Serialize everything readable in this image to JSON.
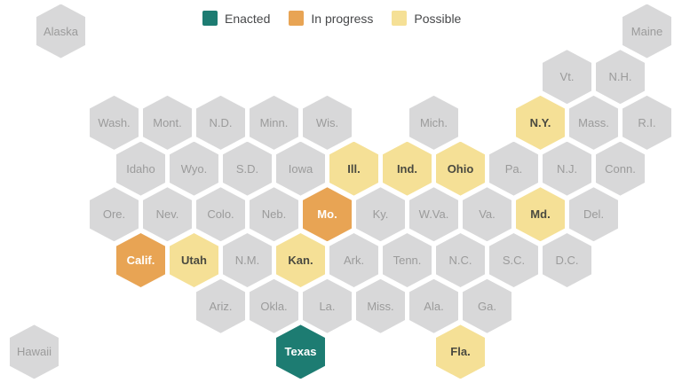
{
  "colors": {
    "enacted": "#1d7c72",
    "in_progress": "#e8a454",
    "possible": "#f5e096",
    "none": "#d8d8d9",
    "label_none": "#9b9b9b",
    "label_dark": "#4a4a40",
    "label_white": "#ffffff",
    "legend_text": "#47484a",
    "background": "#ffffff"
  },
  "chart_data": {
    "type": "heatmap",
    "subtype": "us-states-hex-tile-cartogram",
    "title": "",
    "legend_position": "top-center",
    "legend": [
      {
        "label": "Enacted",
        "key": "enacted"
      },
      {
        "label": "In progress",
        "key": "in_progress"
      },
      {
        "label": "Possible",
        "key": "possible"
      }
    ],
    "states": [
      {
        "label": "Alaska",
        "row": 0,
        "col": -1,
        "status": "none"
      },
      {
        "label": "Maine",
        "row": 0,
        "col": 10,
        "status": "none"
      },
      {
        "label": "Vt.",
        "row": 1,
        "col": 8.5,
        "status": "none"
      },
      {
        "label": "N.H.",
        "row": 1,
        "col": 9.5,
        "status": "none"
      },
      {
        "label": "Wash.",
        "row": 2,
        "col": 0,
        "status": "none"
      },
      {
        "label": "Mont.",
        "row": 2,
        "col": 1,
        "status": "none"
      },
      {
        "label": "N.D.",
        "row": 2,
        "col": 2,
        "status": "none"
      },
      {
        "label": "Minn.",
        "row": 2,
        "col": 3,
        "status": "none"
      },
      {
        "label": "Wis.",
        "row": 2,
        "col": 4,
        "status": "none"
      },
      {
        "label": "Mich.",
        "row": 2,
        "col": 6,
        "status": "none"
      },
      {
        "label": "N.Y.",
        "row": 2,
        "col": 8,
        "status": "possible"
      },
      {
        "label": "Mass.",
        "row": 2,
        "col": 9,
        "status": "none"
      },
      {
        "label": "R.I.",
        "row": 2,
        "col": 10,
        "status": "none"
      },
      {
        "label": "Idaho",
        "row": 3,
        "col": 0.5,
        "status": "none"
      },
      {
        "label": "Wyo.",
        "row": 3,
        "col": 1.5,
        "status": "none"
      },
      {
        "label": "S.D.",
        "row": 3,
        "col": 2.5,
        "status": "none"
      },
      {
        "label": "Iowa",
        "row": 3,
        "col": 3.5,
        "status": "none"
      },
      {
        "label": "Ill.",
        "row": 3,
        "col": 4.5,
        "status": "possible"
      },
      {
        "label": "Ind.",
        "row": 3,
        "col": 5.5,
        "status": "possible"
      },
      {
        "label": "Ohio",
        "row": 3,
        "col": 6.5,
        "status": "possible"
      },
      {
        "label": "Pa.",
        "row": 3,
        "col": 7.5,
        "status": "none"
      },
      {
        "label": "N.J.",
        "row": 3,
        "col": 8.5,
        "status": "none"
      },
      {
        "label": "Conn.",
        "row": 3,
        "col": 9.5,
        "status": "none"
      },
      {
        "label": "Ore.",
        "row": 4,
        "col": 0,
        "status": "none"
      },
      {
        "label": "Nev.",
        "row": 4,
        "col": 1,
        "status": "none"
      },
      {
        "label": "Colo.",
        "row": 4,
        "col": 2,
        "status": "none"
      },
      {
        "label": "Neb.",
        "row": 4,
        "col": 3,
        "status": "none"
      },
      {
        "label": "Mo.",
        "row": 4,
        "col": 4,
        "status": "in_progress"
      },
      {
        "label": "Ky.",
        "row": 4,
        "col": 5,
        "status": "none"
      },
      {
        "label": "W.Va.",
        "row": 4,
        "col": 6,
        "status": "none"
      },
      {
        "label": "Va.",
        "row": 4,
        "col": 7,
        "status": "none"
      },
      {
        "label": "Md.",
        "row": 4,
        "col": 8,
        "status": "possible"
      },
      {
        "label": "Del.",
        "row": 4,
        "col": 9,
        "status": "none"
      },
      {
        "label": "Calif.",
        "row": 5,
        "col": 0.5,
        "status": "in_progress"
      },
      {
        "label": "Utah",
        "row": 5,
        "col": 1.5,
        "status": "possible"
      },
      {
        "label": "N.M.",
        "row": 5,
        "col": 2.5,
        "status": "none"
      },
      {
        "label": "Kan.",
        "row": 5,
        "col": 3.5,
        "status": "possible"
      },
      {
        "label": "Ark.",
        "row": 5,
        "col": 4.5,
        "status": "none"
      },
      {
        "label": "Tenn.",
        "row": 5,
        "col": 5.5,
        "status": "none"
      },
      {
        "label": "N.C.",
        "row": 5,
        "col": 6.5,
        "status": "none"
      },
      {
        "label": "S.C.",
        "row": 5,
        "col": 7.5,
        "status": "none"
      },
      {
        "label": "D.C.",
        "row": 5,
        "col": 8.5,
        "status": "none"
      },
      {
        "label": "Ariz.",
        "row": 6,
        "col": 2,
        "status": "none"
      },
      {
        "label": "Okla.",
        "row": 6,
        "col": 3,
        "status": "none"
      },
      {
        "label": "La.",
        "row": 6,
        "col": 4,
        "status": "none"
      },
      {
        "label": "Miss.",
        "row": 6,
        "col": 5,
        "status": "none"
      },
      {
        "label": "Ala.",
        "row": 6,
        "col": 6,
        "status": "none"
      },
      {
        "label": "Ga.",
        "row": 6,
        "col": 7,
        "status": "none"
      },
      {
        "label": "Hawaii",
        "row": 7,
        "col": -1.5,
        "status": "none"
      },
      {
        "label": "Texas",
        "row": 7,
        "col": 3.5,
        "status": "enacted"
      },
      {
        "label": "Fla.",
        "row": 7,
        "col": 6.5,
        "status": "possible"
      }
    ]
  }
}
